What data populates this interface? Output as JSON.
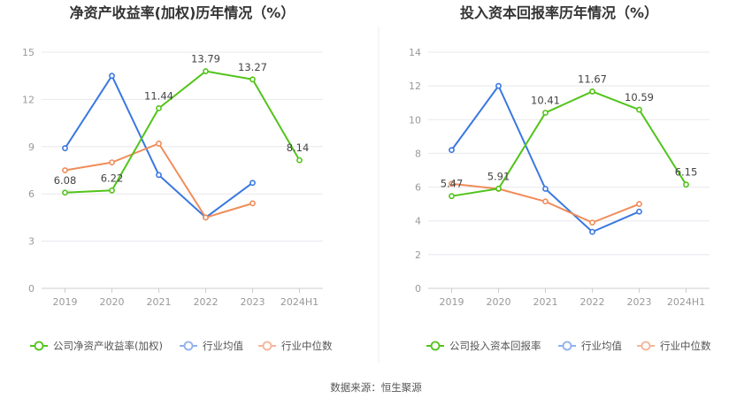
{
  "chart_data": [
    {
      "type": "line",
      "title": "净资产收益率(加权)历年情况（%）",
      "categories": [
        "2019",
        "2020",
        "2021",
        "2022",
        "2023",
        "2024H1"
      ],
      "ylim": [
        0,
        15
      ],
      "yticks": [
        0,
        3,
        6,
        9,
        12,
        15
      ],
      "grid": true,
      "legend_position": "bottom",
      "series": [
        {
          "name": "公司净资产收益率(加权)",
          "color": "#52c41a",
          "values": [
            6.08,
            6.22,
            11.44,
            13.79,
            13.27,
            8.14
          ],
          "labels": [
            "6.08",
            "6.22",
            "11.44",
            "13.79",
            "13.27",
            "8.14"
          ]
        },
        {
          "name": "行业均值",
          "color": "#3a78e0",
          "values": [
            8.9,
            13.5,
            7.2,
            4.5,
            6.7,
            null
          ],
          "labels": null
        },
        {
          "name": "行业中位数",
          "color": "#f08c5a",
          "values": [
            7.5,
            8.0,
            9.2,
            4.5,
            5.4,
            null
          ],
          "labels": null
        }
      ]
    },
    {
      "type": "line",
      "title": "投入资本回报率历年情况（%）",
      "categories": [
        "2019",
        "2020",
        "2021",
        "2022",
        "2023",
        "2024H1"
      ],
      "ylim": [
        0,
        14
      ],
      "yticks": [
        0,
        2,
        4,
        6,
        8,
        10,
        12,
        14
      ],
      "grid": true,
      "legend_position": "bottom",
      "series": [
        {
          "name": "公司投入资本回报率",
          "color": "#52c41a",
          "values": [
            5.47,
            5.91,
            10.41,
            11.67,
            10.59,
            6.15
          ],
          "labels": [
            "5.47",
            "5.91",
            "10.41",
            "11.67",
            "10.59",
            "6.15"
          ]
        },
        {
          "name": "行业均值",
          "color": "#3a78e0",
          "values": [
            8.2,
            12.0,
            5.9,
            3.35,
            4.55,
            null
          ],
          "labels": null
        },
        {
          "name": "行业中位数",
          "color": "#f08c5a",
          "values": [
            6.2,
            5.9,
            5.15,
            3.9,
            5.0,
            null
          ],
          "labels": null
        }
      ]
    }
  ],
  "source_text": "数据来源：恒生聚源"
}
